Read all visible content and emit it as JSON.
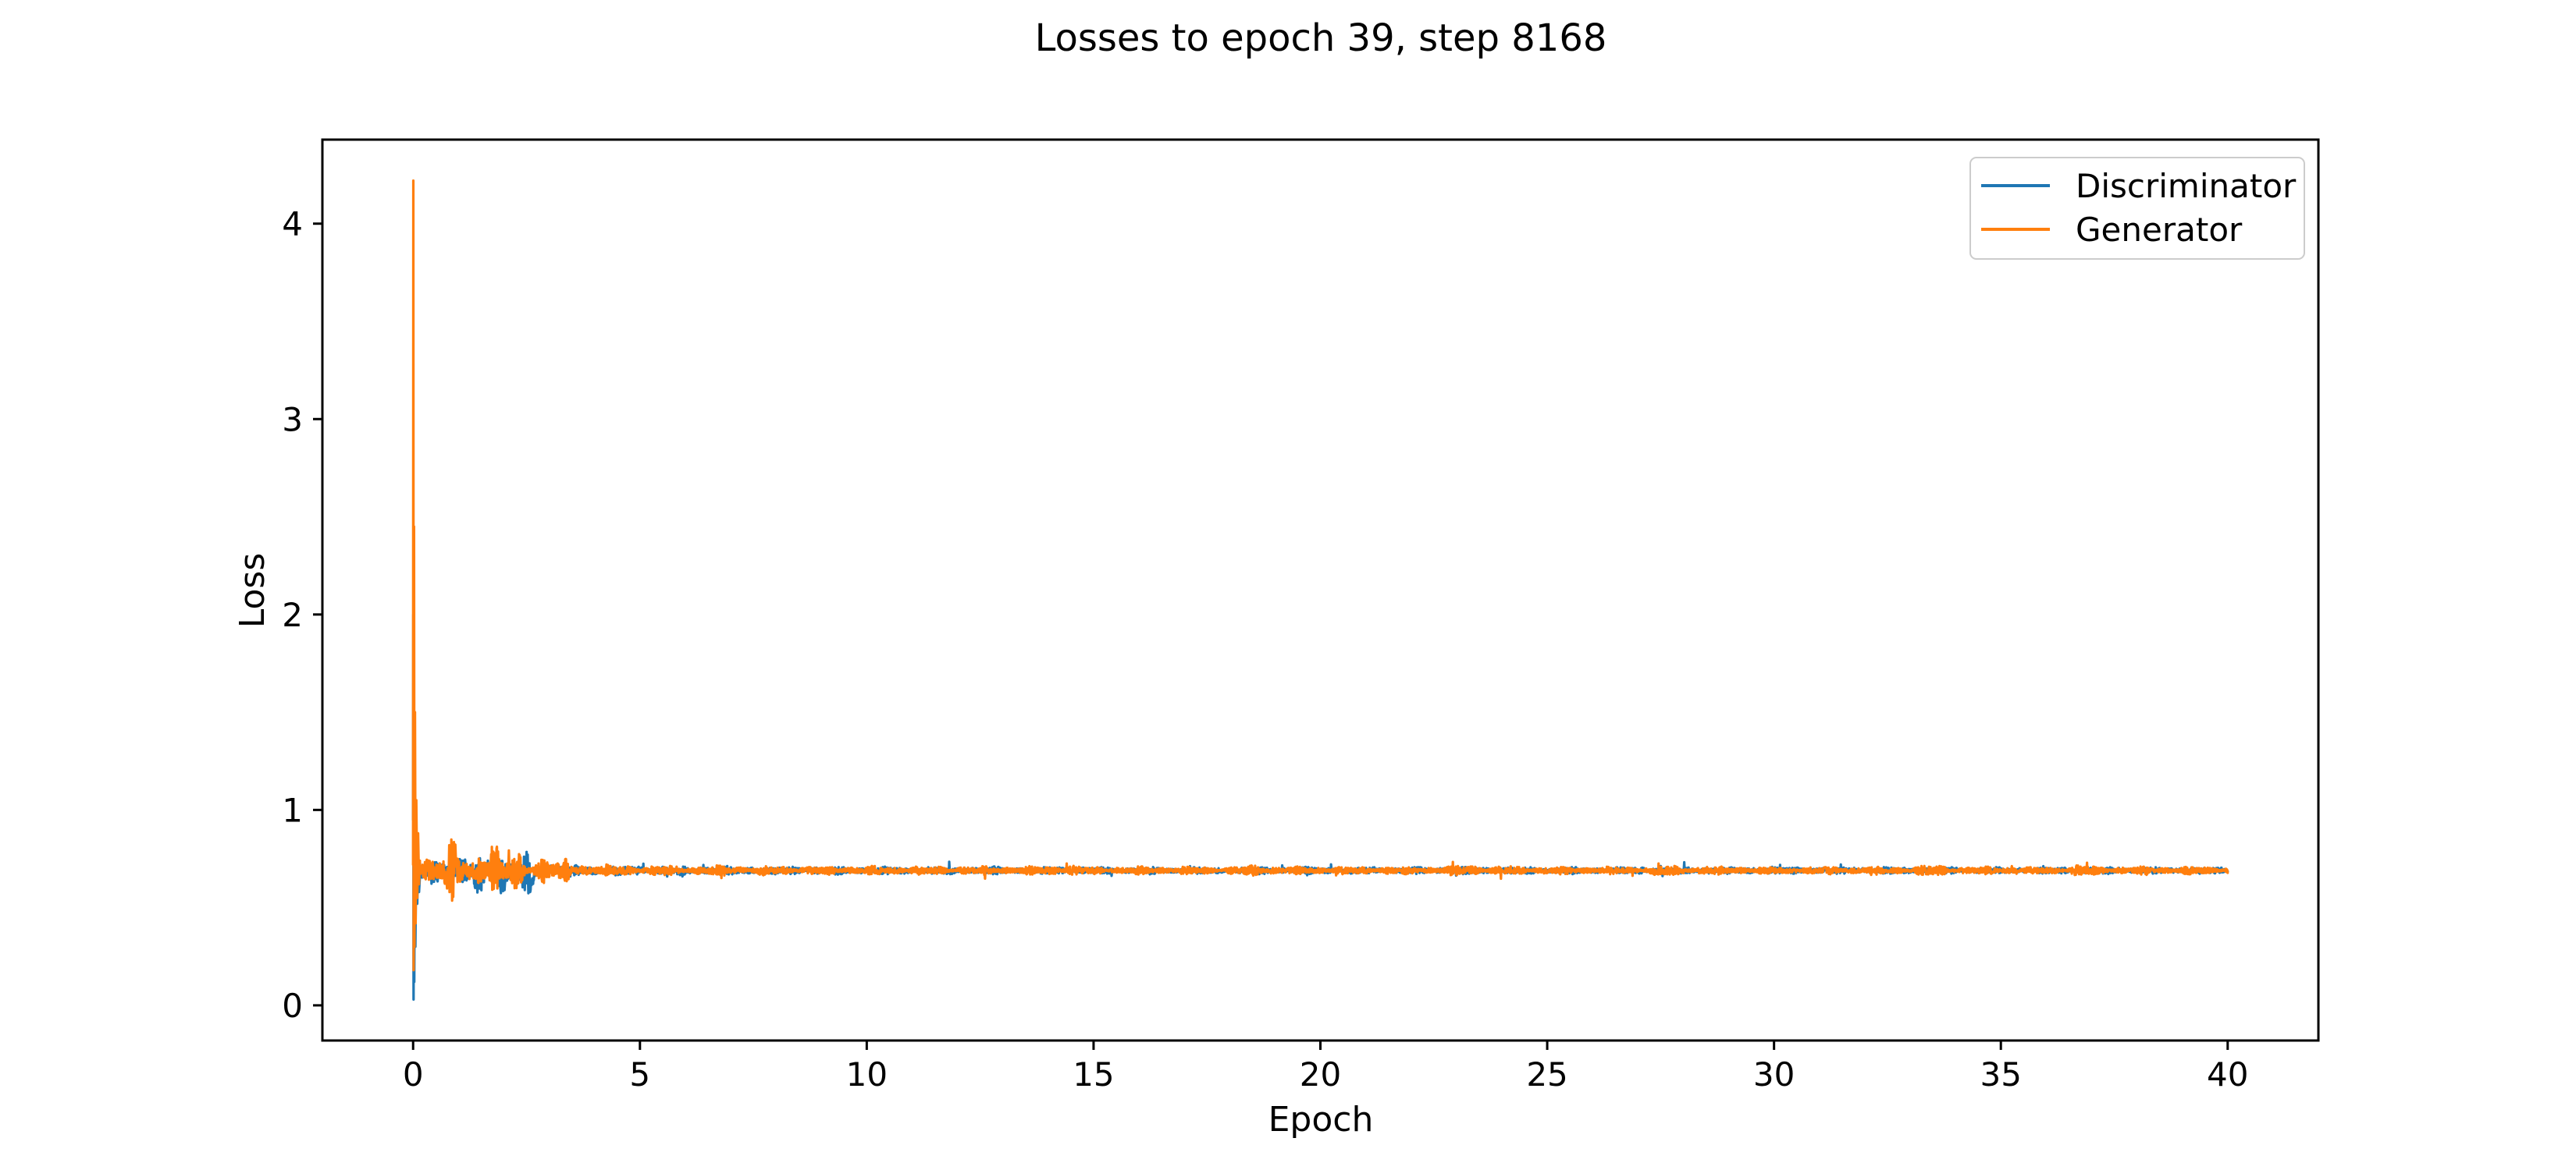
{
  "figure": {
    "title": "Losses to epoch 39, step 8168",
    "background_color": "#ffffff",
    "axes_edge_color": "#000000"
  },
  "chart_data": {
    "type": "line",
    "title": "Losses to epoch 39, step 8168",
    "xlabel": "Epoch",
    "ylabel": "Loss",
    "xlim": [
      -2,
      42
    ],
    "ylim": [
      -0.18,
      4.43
    ],
    "xticks": [
      0,
      5,
      10,
      15,
      20,
      25,
      30,
      35,
      40
    ],
    "yticks": [
      0,
      1,
      2,
      3,
      4
    ],
    "grid": false,
    "x_start": 0.0,
    "x_end": 40.0,
    "legend": {
      "position": "upper right",
      "entries": [
        "Discriminator",
        "Generator"
      ]
    },
    "series": [
      {
        "name": "Discriminator",
        "color": "#1f77b4",
        "baseline": 0.69,
        "start_spike_min": 0.03,
        "start_spike_max": 2.0,
        "transient": [
          [
            0,
            0.95
          ],
          [
            0.004,
            2.0
          ],
          [
            0.01,
            0.03
          ],
          [
            0.018,
            1.6
          ],
          [
            0.026,
            0.12
          ],
          [
            0.038,
            1.05
          ],
          [
            0.05,
            0.3
          ],
          [
            0.07,
            0.8
          ],
          [
            0.09,
            0.52
          ],
          [
            0.11,
            0.72
          ],
          [
            0.13,
            0.58
          ],
          [
            0.15,
            0.66
          ]
        ],
        "noise_envelope": [
          [
            0.15,
            0.09
          ],
          [
            0.6,
            0.08
          ],
          [
            1.0,
            0.07
          ],
          [
            2.0,
            0.055
          ],
          [
            3.0,
            0.04
          ],
          [
            4.0,
            0.03
          ],
          [
            5.0,
            0.026
          ],
          [
            8.0,
            0.023
          ],
          [
            15.0,
            0.02
          ],
          [
            40.0,
            0.019
          ]
        ],
        "bursts": [
          [
            0.45,
            0.05,
            0.08
          ],
          [
            1.45,
            0.1,
            0.1
          ],
          [
            1.95,
            0.09,
            0.09
          ],
          [
            2.5,
            0.09,
            0.09
          ]
        ],
        "center_dips": [
          [
            0.45,
            0.04,
            0.06
          ],
          [
            1.45,
            0.06,
            0.1
          ],
          [
            1.95,
            0.05,
            0.09
          ],
          [
            2.3,
            0.05,
            0.07
          ],
          [
            2.6,
            0.06,
            0.08
          ]
        ]
      },
      {
        "name": "Generator",
        "color": "#ff7f0e",
        "baseline": 0.69,
        "start_spike_min": 0.18,
        "start_spike_max": 4.22,
        "transient": [
          [
            0,
            0.72
          ],
          [
            0.005,
            4.22
          ],
          [
            0.012,
            0.18
          ],
          [
            0.02,
            2.45
          ],
          [
            0.028,
            0.3
          ],
          [
            0.04,
            1.5
          ],
          [
            0.055,
            0.42
          ],
          [
            0.07,
            1.05
          ],
          [
            0.09,
            0.55
          ],
          [
            0.11,
            0.88
          ],
          [
            0.13,
            0.62
          ],
          [
            0.15,
            0.74
          ]
        ],
        "noise_envelope": [
          [
            0.15,
            0.095
          ],
          [
            0.6,
            0.085
          ],
          [
            1.0,
            0.075
          ],
          [
            2.0,
            0.06
          ],
          [
            3.0,
            0.045
          ],
          [
            4.0,
            0.033
          ],
          [
            5.0,
            0.028
          ],
          [
            8.0,
            0.025
          ],
          [
            15.0,
            0.022
          ],
          [
            40.0,
            0.021
          ]
        ],
        "bursts": [
          [
            0.9,
            0.1,
            0.15
          ],
          [
            1.5,
            0.12,
            0.12
          ],
          [
            1.8,
            0.1,
            0.1
          ],
          [
            2.3,
            0.09,
            0.12
          ],
          [
            2.9,
            0.05,
            0.1
          ],
          [
            3.4,
            0.04,
            0.1
          ],
          [
            14.3,
            0.012,
            0.3
          ],
          [
            18.7,
            0.012,
            0.3
          ],
          [
            23.2,
            0.012,
            0.3
          ],
          [
            27.6,
            0.01,
            0.3
          ],
          [
            33.5,
            0.01,
            0.3
          ],
          [
            36.8,
            0.012,
            0.3
          ]
        ],
        "center_dips": []
      }
    ]
  }
}
